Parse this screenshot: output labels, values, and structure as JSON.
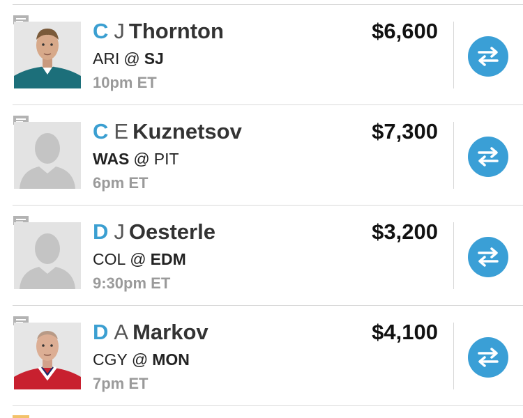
{
  "players": [
    {
      "position": "C",
      "first_initial": "J",
      "last_name": "Thornton",
      "away": "ARI",
      "home": "SJ",
      "bold_team": "home",
      "at": "@",
      "time": "10pm ET",
      "salary": "$6,600",
      "photo": "player-photo-teal-jersey",
      "jersey_color": "#1c6f7a"
    },
    {
      "position": "C",
      "first_initial": "E",
      "last_name": "Kuznetsov",
      "away": "WAS",
      "home": "PIT",
      "bold_team": "away",
      "at": "@",
      "time": "6pm ET",
      "salary": "$7,300",
      "photo": "silhouette-placeholder"
    },
    {
      "position": "D",
      "first_initial": "J",
      "last_name": "Oesterle",
      "away": "COL",
      "home": "EDM",
      "bold_team": "home",
      "at": "@",
      "time": "9:30pm ET",
      "salary": "$3,200",
      "photo": "silhouette-placeholder"
    },
    {
      "position": "D",
      "first_initial": "A",
      "last_name": "Markov",
      "away": "CGY",
      "home": "MON",
      "bold_team": "home",
      "at": "@",
      "time": "7pm ET",
      "salary": "$4,100",
      "photo": "player-photo-red-jersey",
      "jersey_color": "#c8202f"
    }
  ],
  "colors": {
    "position": "#3b9fd1",
    "swap_button": "#3a9fd6",
    "time": "#9a9a9a",
    "accent": "#f3c26a"
  },
  "icons": {
    "comment": "comment-icon",
    "swap": "swap-arrows-icon"
  }
}
